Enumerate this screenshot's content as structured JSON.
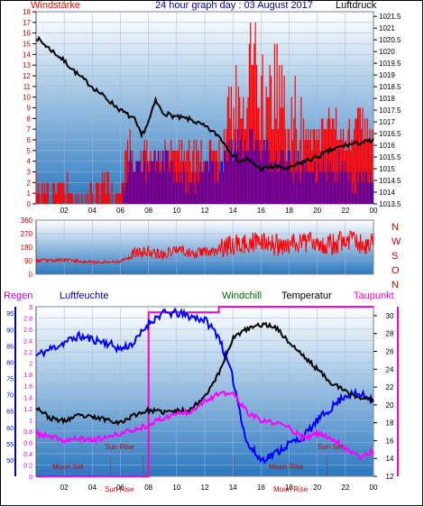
{
  "page": {
    "title": "24 hour graph day : 03 August 2017",
    "label_windstaerke": "Windstärke",
    "label_luftdruck": "Luftdruck",
    "label_regen": "Regen",
    "label_luftfeuchte": "Luftfeuchte",
    "label_windchill": "Windchill",
    "label_temperatur": "Temperatur",
    "label_taupunkt": "Taupunkt"
  },
  "colors": {
    "wind": "#ff0000",
    "gust": "#0000ff",
    "pressure": "#000000",
    "humidity": "#0000ff",
    "temperature": "#000000",
    "dewpoint": "#ff00ff",
    "rain": "#ff00cc",
    "events": "#cc0000",
    "panel_top": "#ffffff",
    "panel_bottom": "#2a78c0"
  },
  "chart_data": [
    {
      "type": "line",
      "id": "wind_pressure",
      "x_ticks": [
        "02",
        "04",
        "06",
        "08",
        "10",
        "12",
        "14",
        "16",
        "18",
        "20",
        "22",
        "00"
      ],
      "y_left_ticks": [
        0,
        1,
        2,
        3,
        4,
        5,
        6,
        7,
        8,
        9,
        10,
        11,
        12,
        13,
        14,
        15,
        16,
        17,
        18
      ],
      "y_right_ticks": [
        "1013.5",
        "1014",
        "1014.5",
        "1015",
        "1015.5",
        "1016",
        "1016.5",
        "1017",
        "1017.5",
        "1018",
        "1018.5",
        "1019",
        "1019.5",
        "1020",
        "1020.5",
        "1021",
        "1021.5"
      ],
      "ylim_left": [
        0,
        18
      ],
      "ylim_right": [
        1013.5,
        1021.7
      ],
      "series": [
        {
          "key": "pressure",
          "x": [
            0,
            1,
            2,
            3,
            4,
            5,
            6,
            7,
            7.5,
            8,
            8.5,
            9,
            10,
            11,
            12,
            13,
            14,
            14.5,
            15,
            16,
            17,
            18,
            19,
            20,
            21,
            22,
            23,
            24
          ],
          "values": [
            1020.6,
            1020.1,
            1019.6,
            1019.0,
            1018.5,
            1018.0,
            1017.5,
            1017.1,
            1016.4,
            1017.0,
            1017.9,
            1017.4,
            1017.2,
            1017.1,
            1016.8,
            1016.4,
            1015.6,
            1015.3,
            1015.4,
            1015.0,
            1015.1,
            1015.0,
            1015.3,
            1015.5,
            1015.8,
            1016.0,
            1016.1,
            1016.2
          ]
        },
        {
          "key": "wind",
          "x": [
            0,
            1,
            2,
            3,
            4,
            5,
            6,
            6.5,
            7,
            8,
            9,
            10,
            11,
            12,
            13,
            14,
            15,
            15.5,
            16,
            17,
            18,
            19,
            20,
            21,
            22,
            23,
            24
          ],
          "values": [
            2,
            1,
            2,
            0,
            1,
            2,
            0,
            6,
            4,
            5,
            4,
            6,
            5,
            4,
            6,
            8,
            12,
            17,
            9,
            11,
            8,
            7,
            6,
            8,
            6,
            8,
            6
          ]
        },
        {
          "key": "gust",
          "x": [
            0,
            6,
            6.5,
            7,
            8,
            9,
            10,
            11,
            12,
            13,
            14,
            15,
            16,
            17,
            18,
            19,
            20,
            21,
            22,
            23,
            24
          ],
          "values": [
            0,
            0,
            3,
            4,
            3,
            4,
            3,
            2,
            4,
            3,
            5,
            6,
            5,
            4,
            4,
            3,
            3,
            4,
            3,
            2,
            2
          ]
        }
      ]
    },
    {
      "type": "line",
      "id": "wind_direction",
      "x_ticks": [
        "02",
        "04",
        "06",
        "08",
        "10",
        "12",
        "14",
        "16",
        "18",
        "20",
        "22",
        "00"
      ],
      "y_left_ticks": [
        0,
        90,
        180,
        270,
        360
      ],
      "y_right_labels": [
        "N",
        "W",
        "S",
        "O",
        "N"
      ],
      "ylim": [
        0,
        360
      ],
      "series": [
        {
          "key": "direction",
          "x": [
            0,
            2,
            4,
            6,
            7,
            8,
            9,
            10,
            11,
            12,
            13,
            14,
            15,
            16,
            17,
            18,
            19,
            20,
            21,
            22,
            23,
            24
          ],
          "values": [
            90,
            95,
            80,
            85,
            140,
            150,
            130,
            170,
            140,
            150,
            160,
            190,
            200,
            210,
            190,
            200,
            220,
            210,
            200,
            230,
            210,
            200
          ]
        }
      ]
    },
    {
      "type": "line",
      "id": "weather",
      "x_ticks": [
        "02",
        "04",
        "06",
        "08",
        "10",
        "12",
        "14",
        "16",
        "18",
        "20",
        "22",
        "00"
      ],
      "y_rain_ticks": [
        "0",
        "0.2",
        "0.4",
        "0.6",
        "0.8",
        "1",
        "1.2",
        "1.4",
        "1.6",
        "1.8",
        "2",
        "2.2",
        "2.4",
        "2.6",
        "2.8",
        "3"
      ],
      "y_humidity_ticks": [
        50,
        55,
        60,
        65,
        70,
        75,
        80,
        85,
        90,
        95
      ],
      "y_temp_ticks": [
        12,
        14,
        16,
        18,
        20,
        22,
        24,
        26,
        28,
        30
      ],
      "ylim_humidity": [
        45,
        97
      ],
      "ylim_temp": [
        12,
        31
      ],
      "ylim_rain": [
        0,
        3
      ],
      "annotations": [
        "Sun Rise",
        "Sun Rise",
        "Moon Set",
        "Moon Rise",
        "Moon Rise",
        "Sun Set"
      ],
      "series": [
        {
          "key": "humidity",
          "x": [
            0,
            1,
            2,
            3,
            4,
            5,
            6,
            7,
            8,
            9,
            10,
            11,
            12,
            13,
            14,
            14.5,
            15,
            16,
            17,
            18,
            19,
            20,
            21,
            22,
            23,
            24
          ],
          "values": [
            82,
            84,
            86,
            88,
            87,
            86,
            84,
            86,
            92,
            95,
            95,
            94,
            93,
            88,
            75,
            65,
            55,
            50,
            52,
            55,
            57,
            62,
            66,
            70,
            70,
            69
          ]
        },
        {
          "key": "temperature",
          "x": [
            0,
            1,
            2,
            3,
            4,
            5,
            6,
            7,
            8,
            9,
            10,
            11,
            12,
            13,
            14,
            15,
            16,
            17,
            18,
            19,
            20,
            21,
            22,
            23,
            24
          ],
          "values": [
            19.8,
            18.5,
            18.2,
            18.8,
            18.6,
            18.4,
            18.0,
            18.9,
            19.4,
            19.2,
            19.3,
            19.5,
            21.0,
            23.5,
            27.5,
            28.5,
            29.0,
            28.8,
            27.0,
            25.5,
            24.0,
            22.5,
            21.5,
            20.8,
            20.5
          ]
        },
        {
          "key": "dewpoint",
          "x": [
            0,
            1,
            2,
            3,
            4,
            5,
            6,
            7,
            8,
            9,
            10,
            11,
            12,
            13,
            14,
            15,
            16,
            17,
            18,
            19,
            20,
            21,
            22,
            23,
            24
          ],
          "values": [
            16.8,
            16.4,
            16.0,
            16.2,
            16.1,
            16.3,
            16.8,
            17.2,
            17.8,
            18.5,
            19.0,
            19.3,
            20.5,
            21.2,
            21.3,
            19.2,
            18.2,
            18.0,
            17.5,
            16.2,
            16.8,
            16.3,
            15.2,
            14.2,
            14.8
          ]
        },
        {
          "key": "rain",
          "x": [
            0,
            8,
            8,
            13,
            13,
            24
          ],
          "values": [
            0,
            0,
            2.9,
            2.9,
            3.0,
            3.0
          ]
        }
      ]
    }
  ]
}
